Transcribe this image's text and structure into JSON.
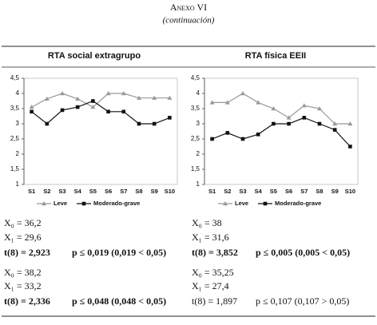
{
  "header": {
    "title": "Anexo VI",
    "subtitle": "(continuación)"
  },
  "chart_data": [
    {
      "type": "line",
      "title": "RTA social extragrupo",
      "categories": [
        "S1",
        "S2",
        "S3",
        "S4",
        "S5",
        "S6",
        "S7",
        "S8",
        "S9",
        "S10"
      ],
      "series": [
        {
          "name": "Leve",
          "color": "#999999",
          "marker": "triangle",
          "values": [
            3.55,
            3.82,
            4.0,
            3.82,
            3.55,
            4.0,
            4.0,
            3.85,
            3.85,
            3.85
          ]
        },
        {
          "name": "Moderado-grave",
          "color": "#111111",
          "marker": "square",
          "values": [
            3.4,
            3.0,
            3.45,
            3.55,
            3.75,
            3.4,
            3.4,
            3.0,
            3.0,
            3.2
          ]
        }
      ],
      "ylim": [
        1,
        4.5
      ],
      "yticks": [
        1,
        {
          "value": 1.5,
          "label": "1,5"
        },
        2,
        {
          "value": 2.5,
          "label": "2,5"
        },
        3,
        {
          "value": 3.5,
          "label": "3,5"
        },
        4,
        {
          "value": 4.5,
          "label": "4,5"
        }
      ],
      "grid": false,
      "legend": "bottom"
    },
    {
      "type": "line",
      "title": "RTA física EEII",
      "categories": [
        "S1",
        "S2",
        "S3",
        "S4",
        "S5",
        "S6",
        "S7",
        "S8",
        "S9",
        "S10"
      ],
      "series": [
        {
          "name": "Leve",
          "color": "#999999",
          "marker": "triangle",
          "values": [
            3.7,
            3.7,
            4.0,
            3.7,
            3.5,
            3.2,
            3.6,
            3.5,
            3.0,
            3.0
          ]
        },
        {
          "name": "Moderado-grave",
          "color": "#111111",
          "marker": "square",
          "values": [
            2.5,
            2.7,
            2.5,
            2.65,
            3.0,
            3.0,
            3.2,
            3.0,
            2.8,
            2.25
          ]
        }
      ],
      "ylim": [
        1,
        4.5
      ],
      "yticks": [
        1,
        {
          "value": 1.5,
          "label": "1,5"
        },
        2,
        {
          "value": 2.5,
          "label": "2,5"
        },
        3,
        {
          "value": 3.5,
          "label": "3,5"
        },
        4,
        {
          "value": 4.5,
          "label": "4,5"
        }
      ],
      "grid": false,
      "legend": "bottom"
    }
  ],
  "stats": [
    [
      {
        "x0": "X₀ = 36,2",
        "x1": "X₁ = 29,6",
        "t": "t(8) = 2,923",
        "p": "p ≤ 0,019 (0,019 < 0,05)",
        "bold": true
      },
      {
        "x0": "X₀ = 38,2",
        "x1": "X₁ = 33,2",
        "t": "t(8) = 2,336",
        "p": "p ≤ 0,048 (0,048 < 0,05)",
        "bold": true
      }
    ],
    [
      {
        "x0": "X₀ = 38",
        "x1": "X₁ = 31,6",
        "t": "t(8) = 3,852",
        "p": "p ≤ 0,005 (0,005 < 0,05)",
        "bold": true
      },
      {
        "x0": "X₀ = 35,25",
        "x1": "X₁ = 27,4",
        "t": "t(8) = 1,897",
        "p": "p ≤ 0,107 (0,107 > 0,05)",
        "bold": false
      }
    ]
  ]
}
